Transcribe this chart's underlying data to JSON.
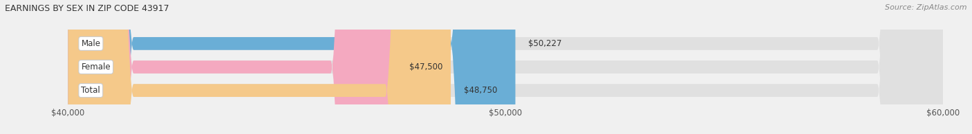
{
  "title": "EARNINGS BY SEX IN ZIP CODE 43917",
  "source": "Source: ZipAtlas.com",
  "categories": [
    "Male",
    "Female",
    "Total"
  ],
  "values": [
    50227,
    47500,
    48750
  ],
  "bar_colors": [
    "#6aaed6",
    "#f4a9c0",
    "#f5c98a"
  ],
  "value_labels": [
    "$50,227",
    "$47,500",
    "$48,750"
  ],
  "xmin": 40000,
  "xmax": 60000,
  "xticks": [
    40000,
    50000,
    60000
  ],
  "xtick_labels": [
    "$40,000",
    "$50,000",
    "$60,000"
  ],
  "background_color": "#f0f0f0",
  "bar_bg_color": "#e0e0e0",
  "title_fontsize": 9,
  "source_fontsize": 8,
  "label_fontsize": 8.5,
  "value_fontsize": 8.5
}
